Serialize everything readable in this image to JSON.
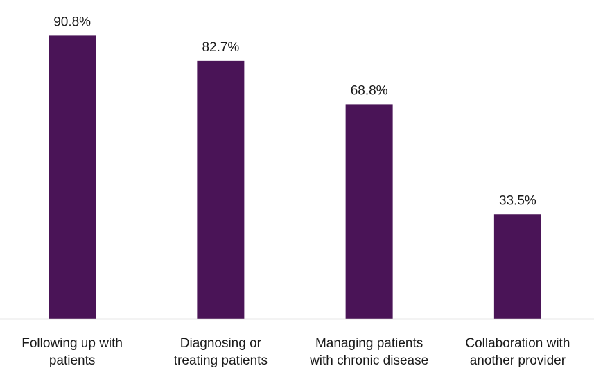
{
  "chart_data": {
    "type": "bar",
    "categories": [
      [
        "Following up with",
        "patients"
      ],
      [
        "Diagnosing or",
        "treating patients"
      ],
      [
        "Managing patients",
        "with chronic disease"
      ],
      [
        "Collaboration with",
        "another provider"
      ]
    ],
    "values": [
      90.8,
      82.7,
      68.8,
      33.5
    ],
    "value_labels": [
      "90.8%",
      "82.7%",
      "68.8%",
      "33.5%"
    ],
    "ylim": [
      0,
      100
    ],
    "grid": false,
    "legend": false,
    "colors": {
      "bar": "#4a1457",
      "axis": "#d0d0d0",
      "text": "#1a1a1a"
    }
  }
}
